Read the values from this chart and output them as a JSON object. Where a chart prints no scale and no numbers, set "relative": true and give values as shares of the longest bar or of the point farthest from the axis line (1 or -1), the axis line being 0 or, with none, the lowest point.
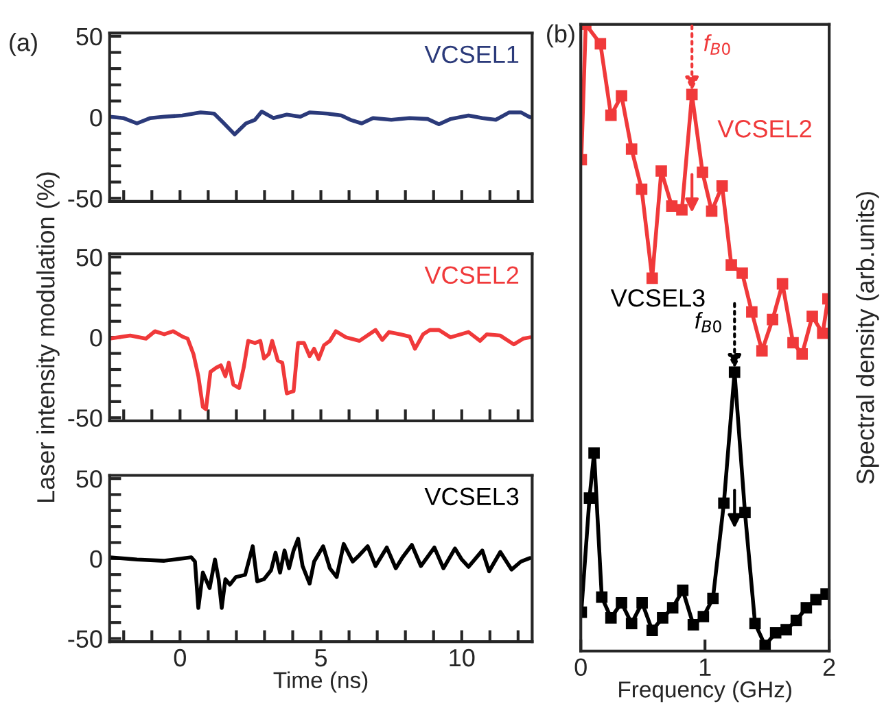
{
  "chart_data": [
    {
      "type": "line",
      "xlim": [
        -2.5,
        12.5
      ],
      "ylim": [
        -52,
        52
      ],
      "tick_labels": "y",
      "legend": false,
      "grid": false,
      "marker": "none",
      "line_style": "solid",
      "xticks": [
        {
          "value": -2,
          "label": null
        },
        {
          "value": -1,
          "label": null
        },
        {
          "value": 0,
          "label": null
        },
        {
          "value": 1,
          "label": null
        },
        {
          "value": 2,
          "label": null
        },
        {
          "value": 3,
          "label": null
        },
        {
          "value": 4,
          "label": null
        },
        {
          "value": 5,
          "label": null
        },
        {
          "value": 6,
          "label": null
        },
        {
          "value": 7,
          "label": null
        },
        {
          "value": 8,
          "label": null
        },
        {
          "value": 9,
          "label": null
        },
        {
          "value": 10,
          "label": null
        },
        {
          "value": 11,
          "label": null
        },
        {
          "value": 12,
          "label": null
        }
      ],
      "yticks": [
        -50,
        {
          "value": -40,
          "label": null
        },
        {
          "value": -30,
          "label": null
        },
        {
          "value": -20,
          "label": null
        },
        {
          "value": -10,
          "label": null
        },
        0,
        {
          "value": 10,
          "label": null
        },
        {
          "value": 20,
          "label": null
        },
        {
          "value": 30,
          "label": null
        },
        {
          "value": 40,
          "label": null
        },
        50
      ],
      "annotations": [
        "(a)"
      ],
      "x": [
        -2.5,
        -2.02,
        -1.53,
        -1.05,
        -0.56,
        0.08,
        0.73,
        1.21,
        1.53,
        1.94,
        2.34,
        2.66,
        2.9,
        3.31,
        3.79,
        4.27,
        4.6,
        5.24,
        5.73,
        6.05,
        6.45,
        6.85,
        7.5,
        8.15,
        8.79,
        9.19,
        9.6,
        10.24,
        10.73,
        11.21,
        11.69,
        12.1,
        12.42
      ],
      "series": [
        {
          "name": "VCSEL1",
          "color": "#2b3a7a",
          "values": [
            0.3,
            -0.5,
            -3.8,
            -0.5,
            0.3,
            1.1,
            3.0,
            2.2,
            -3.3,
            -10.6,
            -3.8,
            -1.6,
            3.5,
            -0.5,
            1.6,
            0.3,
            3.0,
            2.2,
            1.1,
            -1.6,
            -3.8,
            -0.5,
            -1.6,
            -0.5,
            -1.1,
            -4.3,
            -1.1,
            1.1,
            -0.5,
            -1.6,
            3.0,
            3.0,
            0
          ]
        }
      ]
    },
    {
      "type": "line",
      "xlim": [
        -2.5,
        12.5
      ],
      "ylim": [
        -52,
        52
      ],
      "tick_labels": "y",
      "legend": false,
      "grid": false,
      "marker": "none",
      "line_style": "solid",
      "ylabel": "Laser intensity modulation (%)",
      "xticks": [
        {
          "value": -2,
          "label": null
        },
        {
          "value": -1,
          "label": null
        },
        {
          "value": 0,
          "label": null
        },
        {
          "value": 1,
          "label": null
        },
        {
          "value": 2,
          "label": null
        },
        {
          "value": 3,
          "label": null
        },
        {
          "value": 4,
          "label": null
        },
        {
          "value": 5,
          "label": null
        },
        {
          "value": 6,
          "label": null
        },
        {
          "value": 7,
          "label": null
        },
        {
          "value": 8,
          "label": null
        },
        {
          "value": 9,
          "label": null
        },
        {
          "value": 10,
          "label": null
        },
        {
          "value": 11,
          "label": null
        },
        {
          "value": 12,
          "label": null
        }
      ],
      "yticks": [
        -50,
        {
          "value": -40,
          "label": null
        },
        {
          "value": -30,
          "label": null
        },
        {
          "value": -20,
          "label": null
        },
        {
          "value": -10,
          "label": null
        },
        0,
        {
          "value": 10,
          "label": null
        },
        {
          "value": 20,
          "label": null
        },
        {
          "value": 30,
          "label": null
        },
        {
          "value": 40,
          "label": null
        },
        50
      ],
      "x": [
        -2.5,
        -1.77,
        -1.21,
        -0.89,
        -0.56,
        -0.24,
        0.08,
        0.27,
        0.48,
        0.65,
        0.81,
        0.92,
        1.08,
        1.29,
        1.45,
        1.61,
        1.73,
        1.89,
        2.1,
        2.26,
        2.42,
        2.66,
        2.85,
        2.98,
        3.15,
        3.27,
        3.47,
        3.63,
        3.79,
        4.03,
        4.19,
        4.4,
        4.6,
        4.76,
        4.92,
        5.11,
        5.32,
        5.53,
        5.89,
        6.37,
        6.94,
        7.18,
        7.42,
        7.82,
        8.15,
        8.34,
        8.63,
        8.87,
        9.19,
        9.6,
        10.24,
        10.65,
        10.89,
        11.37,
        11.85,
        12.18,
        12.42
      ],
      "series": [
        {
          "name": "VCSEL2",
          "color": "#f0393a",
          "values": [
            -0.8,
            1.1,
            -0.8,
            3.8,
            1.9,
            3.8,
            0.5,
            -0.8,
            -10.6,
            -24.2,
            -43.3,
            -44.7,
            -21.5,
            -18.8,
            -17.4,
            -24.2,
            -15.8,
            -29.4,
            -31.6,
            -18.8,
            -2.2,
            -3.5,
            -2.2,
            -13.1,
            -10.4,
            -2.2,
            -14.4,
            -15.8,
            -34.9,
            -33.5,
            -3.5,
            -3.5,
            -11.7,
            -7.1,
            -13.6,
            -4.9,
            -2.2,
            3.8,
            0,
            -2.2,
            4.6,
            -1.6,
            3.3,
            1.9,
            0.5,
            -7.1,
            1.9,
            4.6,
            4.6,
            0,
            3.3,
            -2.2,
            1.9,
            1.1,
            -4.4,
            -0.8,
            0
          ]
        }
      ]
    },
    {
      "type": "line",
      "xlim": [
        -2.5,
        12.5
      ],
      "ylim": [
        -52,
        52
      ],
      "legend": false,
      "grid": false,
      "marker": "none",
      "line_style": "solid",
      "xlabel": "Time (ns)",
      "xticks": [
        {
          "value": -2,
          "label": null
        },
        {
          "value": -1,
          "label": null
        },
        0,
        {
          "value": 1,
          "label": null
        },
        {
          "value": 2,
          "label": null
        },
        {
          "value": 3,
          "label": null
        },
        {
          "value": 4,
          "label": null
        },
        5,
        {
          "value": 6,
          "label": null
        },
        {
          "value": 7,
          "label": null
        },
        {
          "value": 8,
          "label": null
        },
        {
          "value": 9,
          "label": null
        },
        10,
        {
          "value": 11,
          "label": null
        },
        {
          "value": 12,
          "label": null
        }
      ],
      "yticks": [
        -50,
        {
          "value": -40,
          "label": null
        },
        {
          "value": -30,
          "label": null
        },
        {
          "value": -20,
          "label": null
        },
        {
          "value": -10,
          "label": null
        },
        0,
        {
          "value": 10,
          "label": null
        },
        {
          "value": 20,
          "label": null
        },
        {
          "value": 30,
          "label": null
        },
        {
          "value": 40,
          "label": null
        },
        50
      ],
      "x": [
        -2.5,
        -1.53,
        -0.56,
        0.4,
        0.53,
        0.65,
        0.81,
        1.05,
        1.24,
        1.37,
        1.48,
        1.61,
        1.77,
        1.98,
        2.31,
        2.58,
        2.74,
        2.98,
        3.23,
        3.39,
        3.55,
        3.71,
        3.87,
        4.03,
        4.19,
        4.35,
        4.6,
        4.76,
        5.08,
        5.32,
        5.56,
        5.81,
        6.13,
        6.37,
        6.66,
        6.94,
        7.34,
        7.66,
        7.9,
        8.23,
        8.55,
        9.03,
        9.35,
        9.76,
        10.0,
        10.24,
        10.73,
        10.97,
        11.37,
        11.77,
        12.1,
        12.42
      ],
      "series": [
        {
          "name": "VCSEL3",
          "color": "#000000",
          "values": [
            0.8,
            -0.6,
            -1.4,
            0.8,
            -1.9,
            -30.9,
            -8.8,
            -18.5,
            -0.6,
            -12.9,
            -30.9,
            -12.9,
            -16.3,
            -11.6,
            -10.2,
            7.7,
            -14.3,
            -12.9,
            -7.4,
            3.6,
            -8.8,
            5.0,
            -6.1,
            5.0,
            12.4,
            -4.7,
            -15.7,
            -1.9,
            7.7,
            -6.1,
            -11.6,
            9.1,
            -1.9,
            2.2,
            7.7,
            -4.7,
            6.9,
            -6.1,
            0.8,
            8.5,
            -4.7,
            6.9,
            -6.1,
            6.3,
            -0.6,
            -5.2,
            5.0,
            -8.0,
            4.1,
            -6.9,
            -1.9,
            0.3
          ]
        }
      ]
    },
    {
      "type": "line",
      "relative": true,
      "xlim": [
        0,
        2
      ],
      "xticks": [
        0,
        1,
        2
      ],
      "tick_labels": "x",
      "legend": false,
      "grid": false,
      "marker": "square",
      "line_style": "solid",
      "xlabel": "Frequency (GHz)",
      "ylabel": "Spectral density (arb.units)",
      "annotations": [
        "(b)",
        {
          "text": "f$_{B0}$",
          "x": 0.895,
          "y": 0.888
        },
        {
          "text": "f$_{B0}$",
          "x": 1.238,
          "y": 0.445
        }
      ],
      "series": [
        {
          "name": "VCSEL2",
          "color": "#f0393a",
          "x": [
            0.004,
            0.04,
            0.158,
            0.243,
            0.328,
            0.409,
            0.49,
            0.575,
            0.648,
            0.733,
            0.814,
            0.895,
            0.98,
            1.054,
            1.138,
            1.212,
            1.3,
            1.377,
            1.459,
            1.544,
            1.624,
            1.709,
            1.782,
            1.864,
            1.948,
            1.99
          ],
          "values": [
            0.784,
            1.0,
            0.969,
            0.855,
            0.886,
            0.801,
            0.737,
            0.595,
            0.766,
            0.71,
            0.704,
            0.888,
            0.764,
            0.702,
            0.742,
            0.616,
            0.603,
            0.541,
            0.479,
            0.529,
            0.586,
            0.492,
            0.474,
            0.534,
            0.507,
            0.562
          ]
        },
        {
          "name": "VCSEL3",
          "color": "#000000",
          "x": [
            0.004,
            0.07,
            0.107,
            0.169,
            0.243,
            0.328,
            0.409,
            0.494,
            0.575,
            0.659,
            0.74,
            0.821,
            0.906,
            0.987,
            1.064,
            1.152,
            1.238,
            1.322,
            1.403,
            1.484,
            1.569,
            1.654,
            1.735,
            1.816,
            1.893,
            1.975
          ],
          "values": [
            0.062,
            0.244,
            0.316,
            0.086,
            0.053,
            0.077,
            0.044,
            0.077,
            0.033,
            0.053,
            0.069,
            0.097,
            0.042,
            0.055,
            0.084,
            0.236,
            0.445,
            0.221,
            0.044,
            0.009,
            0.029,
            0.034,
            0.049,
            0.069,
            0.082,
            0.091
          ]
        }
      ]
    }
  ]
}
